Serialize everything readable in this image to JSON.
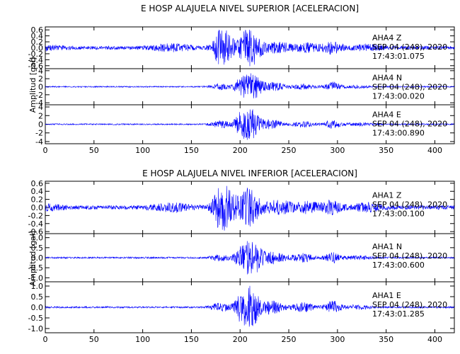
{
  "figure": {
    "trace_color": "#0000ff",
    "axis_color": "#000000",
    "background": "#ffffff"
  },
  "chart_data": [
    {
      "type": "line",
      "title": "E HOSP ALAJUELA NIVEL SUPERIOR [ACELERACION]",
      "ylabel": "Amplitud [gal]",
      "xlim": [
        0,
        420
      ],
      "x_ticks": [
        "0",
        "50",
        "100",
        "150",
        "200",
        "250",
        "300",
        "350",
        "400"
      ],
      "grid": false,
      "series": [
        {
          "name": "AHA4 Z",
          "station": "AHA4",
          "component": "Z",
          "date": "SEP 04 (248), 2020",
          "time": "17:43:01.075",
          "ylim": [
            -0.7,
            0.7
          ],
          "y_ticks": [
            "0.6",
            "0.4",
            "0.2",
            "0.0",
            "-0.2",
            "-0.4",
            "-0.6"
          ],
          "noise": 0.06,
          "peak_amplitude": 0.62,
          "bursts": [
            {
              "t": 0,
              "a": 0.06,
              "w": 20
            },
            {
              "t": 130,
              "a": 0.1,
              "w": 20
            },
            {
              "t": 180,
              "a": 0.45,
              "w": 8
            },
            {
              "t": 188,
              "a": 0.3,
              "w": 10
            },
            {
              "t": 205,
              "a": 0.25,
              "w": 6
            },
            {
              "t": 212,
              "a": 0.55,
              "w": 10
            },
            {
              "t": 240,
              "a": 0.15,
              "w": 15
            },
            {
              "t": 270,
              "a": 0.12,
              "w": 12
            },
            {
              "t": 295,
              "a": 0.18,
              "w": 10
            },
            {
              "t": 330,
              "a": 0.08,
              "w": 15
            }
          ]
        },
        {
          "name": "AHA4 N",
          "station": "AHA4",
          "component": "N",
          "date": "SEP 04 (248), 2020",
          "time": "17:43:00.020",
          "ylim": [
            -4.5,
            4.5
          ],
          "y_ticks": [
            "4",
            "2",
            "0",
            "-2",
            "-4"
          ],
          "noise": 0.15,
          "peak_amplitude": 3.5,
          "bursts": [
            {
              "t": 180,
              "a": 0.8,
              "w": 10
            },
            {
              "t": 200,
              "a": 1.5,
              "w": 6
            },
            {
              "t": 212,
              "a": 3.2,
              "w": 10
            },
            {
              "t": 235,
              "a": 1.0,
              "w": 12
            },
            {
              "t": 265,
              "a": 0.6,
              "w": 12
            },
            {
              "t": 295,
              "a": 1.1,
              "w": 8
            },
            {
              "t": 320,
              "a": 0.3,
              "w": 15
            }
          ]
        },
        {
          "name": "AHA4 E",
          "station": "AHA4",
          "component": "E",
          "date": "SEP 04 (248), 2020",
          "time": "17:43:00.890",
          "ylim": [
            -4.5,
            4.5
          ],
          "y_ticks": [
            "4",
            "2",
            "0",
            "-2",
            "-4"
          ],
          "noise": 0.15,
          "peak_amplitude": 3.8,
          "bursts": [
            {
              "t": 180,
              "a": 0.8,
              "w": 10
            },
            {
              "t": 200,
              "a": 2.0,
              "w": 6
            },
            {
              "t": 211,
              "a": 3.6,
              "w": 9
            },
            {
              "t": 232,
              "a": 1.0,
              "w": 12
            },
            {
              "t": 265,
              "a": 0.6,
              "w": 12
            },
            {
              "t": 295,
              "a": 1.0,
              "w": 8
            },
            {
              "t": 320,
              "a": 0.3,
              "w": 15
            }
          ]
        }
      ]
    },
    {
      "type": "line",
      "title": "E HOSP ALAJUELA NIVEL INFERIOR [ACELERACION]",
      "ylabel": "Amplitud [gal]",
      "xlim": [
        0,
        420
      ],
      "x_ticks": [
        "0",
        "50",
        "100",
        "150",
        "200",
        "250",
        "300",
        "350",
        "400"
      ],
      "grid": false,
      "series": [
        {
          "name": "AHA1 Z",
          "station": "AHA1",
          "component": "Z",
          "date": "SEP 04 (248), 2020",
          "time": "17:43:00.100",
          "ylim": [
            -0.65,
            0.65
          ],
          "y_ticks": [
            "0.6",
            "0.4",
            "0.2",
            "0.0",
            "-0.2",
            "-0.4",
            "-0.6"
          ],
          "noise": 0.05,
          "peak_amplitude": 0.6,
          "bursts": [
            {
              "t": 0,
              "a": 0.05,
              "w": 20
            },
            {
              "t": 130,
              "a": 0.08,
              "w": 20
            },
            {
              "t": 180,
              "a": 0.45,
              "w": 8
            },
            {
              "t": 190,
              "a": 0.3,
              "w": 10
            },
            {
              "t": 210,
              "a": 0.45,
              "w": 10
            },
            {
              "t": 240,
              "a": 0.15,
              "w": 15
            },
            {
              "t": 270,
              "a": 0.12,
              "w": 12
            },
            {
              "t": 295,
              "a": 0.15,
              "w": 10
            },
            {
              "t": 330,
              "a": 0.08,
              "w": 15
            }
          ]
        },
        {
          "name": "AHA1 N",
          "station": "AHA1",
          "component": "N",
          "date": "SEP 04 (248), 2020",
          "time": "17:43:00.600",
          "ylim": [
            -1.2,
            1.2
          ],
          "y_ticks": [
            "1.0",
            "0.5",
            "0.0",
            "-0.5",
            "-1.0"
          ],
          "noise": 0.04,
          "peak_amplitude": 1.0,
          "bursts": [
            {
              "t": 180,
              "a": 0.15,
              "w": 10
            },
            {
              "t": 200,
              "a": 0.35,
              "w": 6
            },
            {
              "t": 212,
              "a": 0.9,
              "w": 10
            },
            {
              "t": 235,
              "a": 0.3,
              "w": 12
            },
            {
              "t": 265,
              "a": 0.2,
              "w": 12
            },
            {
              "t": 295,
              "a": 0.25,
              "w": 8
            },
            {
              "t": 320,
              "a": 0.08,
              "w": 15
            }
          ]
        },
        {
          "name": "AHA1 E",
          "station": "AHA1",
          "component": "E",
          "date": "SEP 04 (248), 2020",
          "time": "17:43:01.285",
          "ylim": [
            -1.2,
            1.2
          ],
          "y_ticks": [
            "1.0",
            "0.5",
            "0.0",
            "-0.5",
            "-1.0"
          ],
          "noise": 0.04,
          "peak_amplitude": 1.05,
          "bursts": [
            {
              "t": 180,
              "a": 0.2,
              "w": 10
            },
            {
              "t": 200,
              "a": 0.5,
              "w": 6
            },
            {
              "t": 211,
              "a": 0.95,
              "w": 9
            },
            {
              "t": 232,
              "a": 0.3,
              "w": 12
            },
            {
              "t": 265,
              "a": 0.2,
              "w": 12
            },
            {
              "t": 295,
              "a": 0.3,
              "w": 8
            },
            {
              "t": 320,
              "a": 0.08,
              "w": 15
            }
          ]
        }
      ]
    }
  ]
}
